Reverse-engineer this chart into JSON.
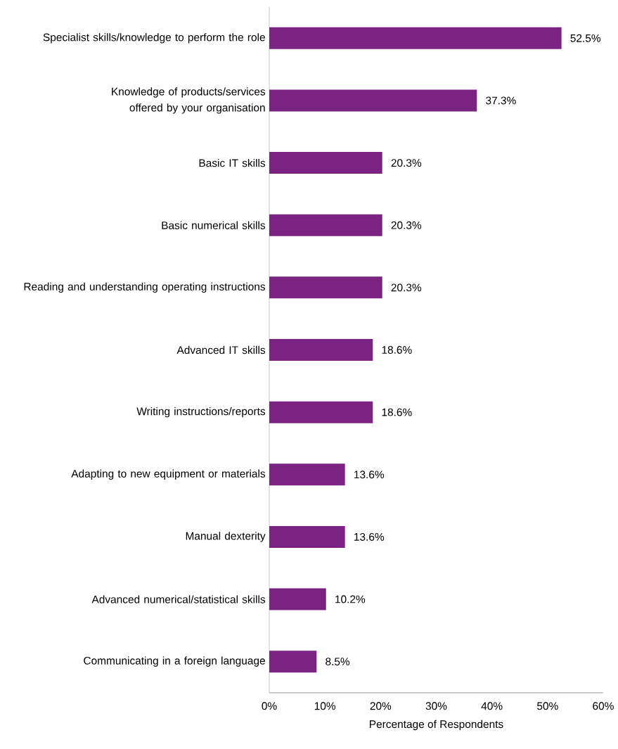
{
  "chart_data": {
    "type": "bar",
    "orientation": "horizontal",
    "xlabel": "Percentage of Respondents",
    "categories": [
      "Specialist skills/knowledge to perform the role",
      "Knowledge of products/services offered by your organisation",
      "Basic IT skills",
      "Basic numerical skills",
      "Reading and understanding operating instructions",
      "Advanced IT skills",
      "Writing instructions/reports",
      "Adapting to new equipment or materials",
      "Manual dexterity",
      "Advanced numerical/statistical skills",
      "Communicating in a foreign language"
    ],
    "values": [
      52.5,
      37.3,
      20.3,
      20.3,
      20.3,
      18.6,
      18.6,
      13.6,
      13.6,
      10.2,
      8.5
    ],
    "value_labels": [
      "52.5%",
      "37.3%",
      "20.3%",
      "20.3%",
      "20.3%",
      "18.6%",
      "18.6%",
      "13.6%",
      "13.6%",
      "10.2%",
      "8.5%"
    ],
    "color": "#7B2382",
    "xlim": [
      0,
      60
    ],
    "xticks": [
      {
        "value": 0,
        "label": "0%"
      },
      {
        "value": 10,
        "label": "10%"
      },
      {
        "value": 20,
        "label": "20%"
      },
      {
        "value": 30,
        "label": "30%"
      },
      {
        "value": 40,
        "label": "40%"
      },
      {
        "value": 50,
        "label": "50%"
      },
      {
        "value": 60,
        "label": "60%"
      }
    ]
  }
}
